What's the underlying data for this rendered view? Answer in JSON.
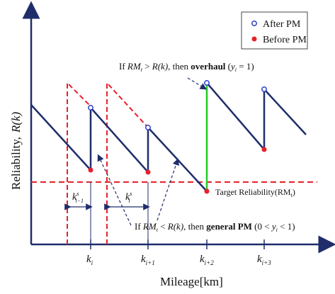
{
  "diagram": {
    "y_axis_label": "Reliability,",
    "y_axis_symbol": "R(k)",
    "x_axis_label": "Mileage[km]",
    "x_ticks": [
      {
        "base": "k",
        "sub": "i"
      },
      {
        "base": "k",
        "sub": "i+1"
      },
      {
        "base": "k",
        "sub": "i+2"
      },
      {
        "base": "k",
        "sub": "i+3"
      }
    ],
    "legend": {
      "after": "After PM",
      "before": "Before PM"
    },
    "target_label": "Target Reliability(RM",
    "target_label_sub": "t",
    "target_label_end": ")",
    "overhaul_note": {
      "prefix": "If ",
      "rm": "RM",
      "rm_sub": "t",
      "gt": " > ",
      "rk": "R(k)",
      "mid": ", then ",
      "bold": "overhaul",
      "paren_open": " (",
      "y": "y",
      "y_sub": "i",
      "eq": " = 1)"
    },
    "general_note": {
      "prefix": "If  ",
      "rm": "RM",
      "rm_sub": "t",
      "lt": " < ",
      "rk": "R(k)",
      "mid": ", then ",
      "bold": "general PM",
      "paren_open": " (0 < ",
      "y": "y",
      "y_sub": "i",
      "end": " < 1)"
    },
    "interval_labels": [
      {
        "base": "k",
        "sup": "s",
        "sub": "i−1"
      },
      {
        "base": "k",
        "sup": "s",
        "sub": "i"
      }
    ],
    "colors": {
      "curve": "#1f2d6b",
      "dashed": "#e8202a",
      "overhaul": "#22cc22",
      "after_marker": "#2a3fc9",
      "before_marker": "#e8202a"
    }
  }
}
